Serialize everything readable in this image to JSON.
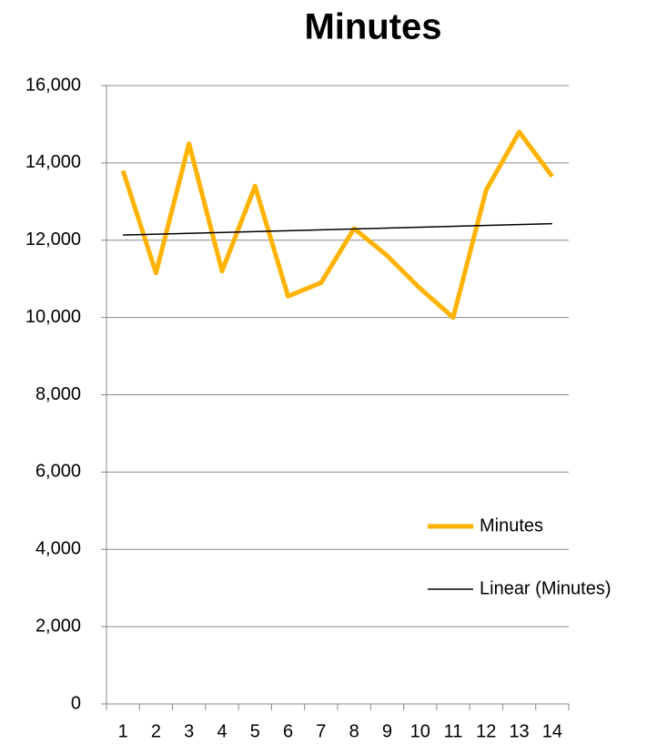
{
  "chart_data": {
    "type": "line",
    "title": "Minutes",
    "categories": [
      "1",
      "2",
      "3",
      "4",
      "5",
      "6",
      "7",
      "8",
      "9",
      "10",
      "11",
      "12",
      "13",
      "14"
    ],
    "series": [
      {
        "name": "Minutes",
        "color": "#ffb300",
        "values": [
          13800,
          11150,
          14500,
          11200,
          13400,
          10550,
          10900,
          12300,
          11600,
          10750,
          10000,
          13300,
          14800,
          13650
        ]
      }
    ],
    "trendline": {
      "name": "Linear (Minutes)",
      "type": "linear",
      "color": "#000000"
    },
    "ylim": [
      0,
      16000
    ],
    "yticks": [
      0,
      {
        "value": 2000,
        "label": "2,000"
      },
      {
        "value": 4000,
        "label": "4,000"
      },
      {
        "value": 6000,
        "label": "6,000"
      },
      {
        "value": 8000,
        "label": "8,000"
      },
      {
        "value": 10000,
        "label": "10,000"
      },
      {
        "value": 12000,
        "label": "12,000"
      },
      {
        "value": 14000,
        "label": "14,000"
      },
      {
        "value": 16000,
        "label": "16,000"
      }
    ],
    "grid": true,
    "legend": "right"
  }
}
